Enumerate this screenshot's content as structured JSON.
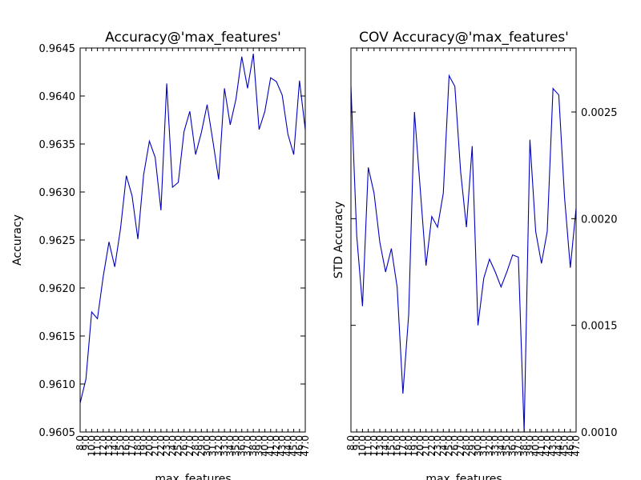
{
  "chart_data": [
    {
      "type": "line",
      "title": "Accuracy@'max_features'",
      "xlabel": "max_features",
      "ylabel": "Accuracy",
      "ylim": [
        0.9605,
        0.9645
      ],
      "yticks": [
        "0.9605",
        "0.9610",
        "0.9615",
        "0.9620",
        "0.9625",
        "0.9630",
        "0.9635",
        "0.9640",
        "0.9645"
      ],
      "yaxis_side": "left",
      "color": "#0000bf",
      "x": [
        8,
        9,
        10,
        11,
        12,
        13,
        14,
        15,
        16,
        17,
        18,
        19,
        20,
        21,
        22,
        23,
        24,
        25,
        26,
        27,
        28,
        29,
        30,
        31,
        32,
        33,
        34,
        35,
        36,
        37,
        38,
        39,
        40,
        41,
        42,
        43,
        44,
        45,
        46,
        47
      ],
      "xtick_labels": [
        "8.0",
        "9.0",
        "10.0",
        "11.0",
        "12.0",
        "13.0",
        "14.0",
        "15.0",
        "16.0",
        "17.0",
        "18.0",
        "19.0",
        "20.0",
        "21.0",
        "22.0",
        "23.0",
        "24.0",
        "25.0",
        "26.0",
        "27.0",
        "28.0",
        "29.0",
        "30.0",
        "31.0",
        "32.0",
        "33.0",
        "34.0",
        "35.0",
        "36.0",
        "37.0",
        "38.0",
        "39.0",
        "40.0",
        "41.0",
        "42.0",
        "43.0",
        "44.0",
        "45.0",
        "46.0",
        "47.0"
      ],
      "values": [
        0.9608,
        0.96105,
        0.96175,
        0.96168,
        0.96212,
        0.96248,
        0.96222,
        0.96262,
        0.96317,
        0.96296,
        0.96251,
        0.96318,
        0.96353,
        0.96336,
        0.96281,
        0.96413,
        0.96305,
        0.9631,
        0.96363,
        0.96384,
        0.96339,
        0.96362,
        0.96391,
        0.96353,
        0.96313,
        0.96408,
        0.9637,
        0.96397,
        0.96441,
        0.96408,
        0.96444,
        0.96365,
        0.96384,
        0.96419,
        0.96415,
        0.96401,
        0.9636,
        0.96339,
        0.96416,
        0.96365
      ]
    },
    {
      "type": "line",
      "title": "COV Accuracy@'max_features'",
      "xlabel": "max_features",
      "ylabel": "STD Accuracy",
      "ylim": [
        0.001,
        0.0028
      ],
      "yticks": [
        "0.0010",
        "0.0015",
        "0.0020",
        "0.0025"
      ],
      "ytick_values": [
        0.001,
        0.0015,
        0.002,
        0.0025
      ],
      "yaxis_side": "right",
      "color": "#0000bf",
      "x": [
        8,
        9,
        10,
        11,
        12,
        13,
        14,
        15,
        16,
        17,
        18,
        19,
        20,
        21,
        22,
        23,
        24,
        25,
        26,
        27,
        28,
        29,
        30,
        31,
        32,
        33,
        34,
        35,
        36,
        37,
        38,
        39,
        40,
        41,
        42,
        43,
        44,
        45,
        46,
        47
      ],
      "xtick_labels": [
        "8.0",
        "9.0",
        "10.0",
        "11.0",
        "12.0",
        "13.0",
        "14.0",
        "15.0",
        "16.0",
        "17.0",
        "18.0",
        "19.0",
        "20.0",
        "21.0",
        "22.0",
        "23.0",
        "24.0",
        "25.0",
        "26.0",
        "27.0",
        "28.0",
        "29.0",
        "30.0",
        "31.0",
        "32.0",
        "33.0",
        "34.0",
        "35.0",
        "36.0",
        "37.0",
        "38.0",
        "39.0",
        "40.0",
        "41.0",
        "42.0",
        "43.0",
        "44.0",
        "45.0",
        "46.0",
        "47.0"
      ],
      "values": [
        0.00262,
        0.00192,
        0.00159,
        0.00224,
        0.00212,
        0.00189,
        0.00175,
        0.00186,
        0.00168,
        0.00118,
        0.00155,
        0.0025,
        0.00214,
        0.00178,
        0.00201,
        0.00196,
        0.00212,
        0.00267,
        0.00262,
        0.00222,
        0.00196,
        0.00234,
        0.0015,
        0.00172,
        0.00181,
        0.00175,
        0.00168,
        0.00175,
        0.00183,
        0.00182,
        0.001,
        0.00237,
        0.00194,
        0.00179,
        0.00194,
        0.00261,
        0.00258,
        0.0021,
        0.00177,
        0.00205
      ]
    }
  ]
}
